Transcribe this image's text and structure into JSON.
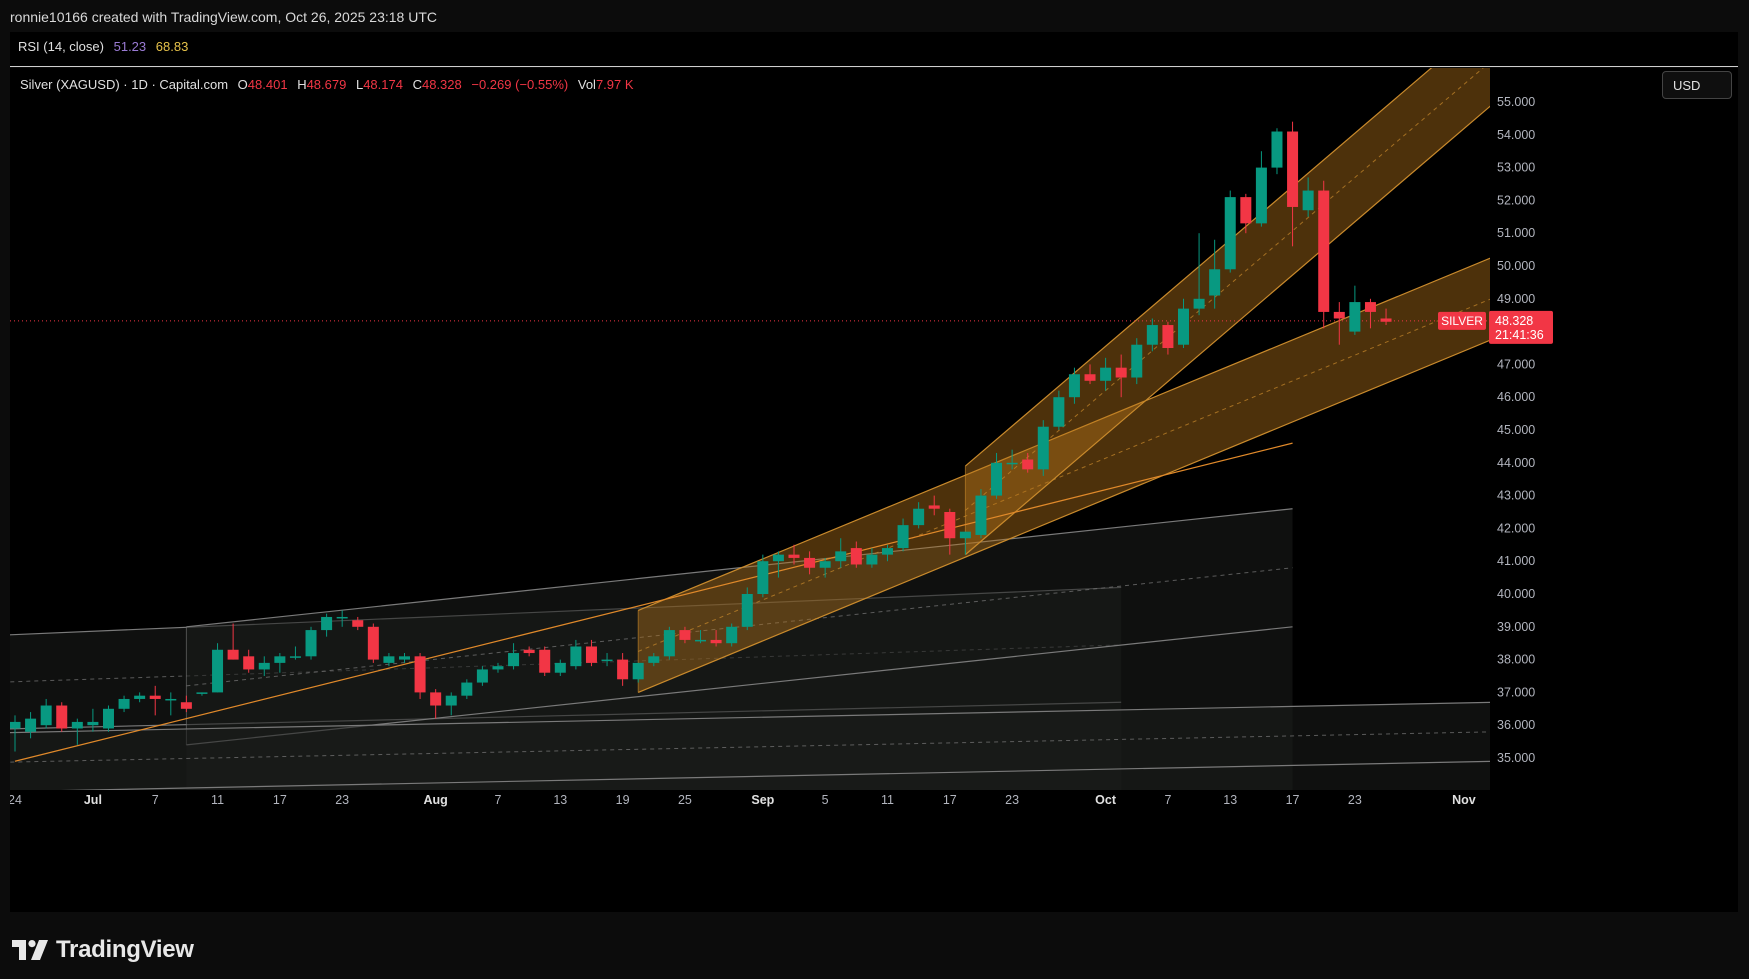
{
  "header": {
    "credit": "ronnie10166 created with TradingView.com, Oct 26, 2025 23:18 UTC"
  },
  "rsi": {
    "label": "RSI (14, close)",
    "value1": "51.23",
    "value2": "68.83"
  },
  "legend": {
    "symbol": "Silver (XAGUSD) · 1D · Capital.com",
    "o_label": "O",
    "o_value": "48.401",
    "h_label": "H",
    "h_value": "48.679",
    "l_label": "L",
    "l_value": "48.174",
    "c_label": "C",
    "c_value": "48.328",
    "change": "−0.269 (−0.55%)",
    "vol_label": "Vol",
    "vol_value": "7.97 K"
  },
  "currency_button": "USD",
  "brand": "TradingView",
  "colors": {
    "up": "#089981",
    "down": "#f23645",
    "channel_fill": "#b8741a",
    "channel_border": "#c98a2c",
    "grey_channel": "#7a7a7a",
    "price_tag": "#f23645"
  },
  "chart_data": {
    "type": "candlestick",
    "price_axis": {
      "ticks": [
        "55.000",
        "54.000",
        "53.000",
        "52.000",
        "51.000",
        "50.000",
        "49.000",
        "48.000",
        "47.000",
        "46.000",
        "45.000",
        "44.000",
        "43.000",
        "42.000",
        "41.000",
        "40.000",
        "39.000",
        "38.000",
        "37.000",
        "36.000",
        "35.000"
      ],
      "range": [
        34.0,
        56.6
      ]
    },
    "time_axis": {
      "ticks": [
        {
          "label": "24",
          "bar": 0
        },
        {
          "label": "Jul",
          "bar": 5
        },
        {
          "label": "7",
          "bar": 9
        },
        {
          "label": "11",
          "bar": 13
        },
        {
          "label": "17",
          "bar": 17
        },
        {
          "label": "23",
          "bar": 21
        },
        {
          "label": "Aug",
          "bar": 27
        },
        {
          "label": "7",
          "bar": 31
        },
        {
          "label": "13",
          "bar": 35
        },
        {
          "label": "19",
          "bar": 39
        },
        {
          "label": "25",
          "bar": 43
        },
        {
          "label": "Sep",
          "bar": 48
        },
        {
          "label": "5",
          "bar": 52
        },
        {
          "label": "11",
          "bar": 56
        },
        {
          "label": "17",
          "bar": 60
        },
        {
          "label": "23",
          "bar": 64
        },
        {
          "label": "Oct",
          "bar": 70
        },
        {
          "label": "7",
          "bar": 74
        },
        {
          "label": "13",
          "bar": 78
        },
        {
          "label": "17",
          "bar": 82
        },
        {
          "label": "23",
          "bar": 86
        },
        {
          "label": "Nov",
          "bar": 93
        }
      ],
      "bar_range": [
        0,
        94
      ]
    },
    "last_price": {
      "label": "SILVER",
      "price": "48.328",
      "countdown": "21:41:36",
      "value": 48.328
    },
    "candles": [
      {
        "i": 0,
        "o": 35.9,
        "h": 36.3,
        "l": 35.2,
        "c": 36.1
      },
      {
        "i": 1,
        "o": 35.8,
        "h": 36.4,
        "l": 35.6,
        "c": 36.2
      },
      {
        "i": 2,
        "o": 36.0,
        "h": 36.8,
        "l": 35.9,
        "c": 36.6
      },
      {
        "i": 3,
        "o": 36.6,
        "h": 36.7,
        "l": 35.8,
        "c": 35.9
      },
      {
        "i": 4,
        "o": 35.9,
        "h": 36.2,
        "l": 35.4,
        "c": 36.1
      },
      {
        "i": 5,
        "o": 36.0,
        "h": 36.5,
        "l": 35.8,
        "c": 36.1
      },
      {
        "i": 6,
        "o": 35.9,
        "h": 36.6,
        "l": 35.8,
        "c": 36.5
      },
      {
        "i": 7,
        "o": 36.5,
        "h": 36.9,
        "l": 36.4,
        "c": 36.8
      },
      {
        "i": 8,
        "o": 36.8,
        "h": 37.0,
        "l": 36.7,
        "c": 36.9
      },
      {
        "i": 9,
        "o": 36.9,
        "h": 37.2,
        "l": 36.3,
        "c": 36.8
      },
      {
        "i": 10,
        "o": 36.8,
        "h": 37.0,
        "l": 36.3,
        "c": 36.8
      },
      {
        "i": 11,
        "o": 36.7,
        "h": 36.9,
        "l": 36.4,
        "c": 36.5
      },
      {
        "i": 12,
        "o": 37.0,
        "h": 37.0,
        "l": 36.9,
        "c": 37.0
      },
      {
        "i": 13,
        "o": 37.0,
        "h": 38.5,
        "l": 37.0,
        "c": 38.3
      },
      {
        "i": 14,
        "o": 38.3,
        "h": 39.1,
        "l": 38.0,
        "c": 38.0
      },
      {
        "i": 15,
        "o": 38.1,
        "h": 38.3,
        "l": 37.6,
        "c": 37.7
      },
      {
        "i": 16,
        "o": 37.7,
        "h": 38.1,
        "l": 37.5,
        "c": 37.9
      },
      {
        "i": 17,
        "o": 37.9,
        "h": 38.2,
        "l": 37.6,
        "c": 38.1
      },
      {
        "i": 18,
        "o": 38.1,
        "h": 38.4,
        "l": 38.0,
        "c": 38.1
      },
      {
        "i": 19,
        "o": 38.1,
        "h": 39.0,
        "l": 38.0,
        "c": 38.9
      },
      {
        "i": 20,
        "o": 38.9,
        "h": 39.4,
        "l": 38.7,
        "c": 39.3
      },
      {
        "i": 21,
        "o": 39.3,
        "h": 39.5,
        "l": 39.0,
        "c": 39.3
      },
      {
        "i": 22,
        "o": 39.2,
        "h": 39.3,
        "l": 38.9,
        "c": 39.0
      },
      {
        "i": 23,
        "o": 39.0,
        "h": 39.1,
        "l": 37.9,
        "c": 38.0
      },
      {
        "i": 24,
        "o": 37.9,
        "h": 38.2,
        "l": 37.8,
        "c": 38.1
      },
      {
        "i": 25,
        "o": 38.0,
        "h": 38.2,
        "l": 37.9,
        "c": 38.1
      },
      {
        "i": 26,
        "o": 38.1,
        "h": 38.2,
        "l": 36.8,
        "c": 37.0
      },
      {
        "i": 27,
        "o": 37.0,
        "h": 37.1,
        "l": 36.2,
        "c": 36.6
      },
      {
        "i": 28,
        "o": 36.6,
        "h": 37.0,
        "l": 36.3,
        "c": 36.9
      },
      {
        "i": 29,
        "o": 36.9,
        "h": 37.4,
        "l": 36.8,
        "c": 37.3
      },
      {
        "i": 30,
        "o": 37.3,
        "h": 37.8,
        "l": 37.2,
        "c": 37.7
      },
      {
        "i": 31,
        "o": 37.7,
        "h": 37.9,
        "l": 37.6,
        "c": 37.8
      },
      {
        "i": 32,
        "o": 37.8,
        "h": 38.5,
        "l": 37.7,
        "c": 38.2
      },
      {
        "i": 33,
        "o": 38.3,
        "h": 38.4,
        "l": 38.1,
        "c": 38.2
      },
      {
        "i": 34,
        "o": 38.3,
        "h": 38.4,
        "l": 37.5,
        "c": 37.6
      },
      {
        "i": 35,
        "o": 37.6,
        "h": 38.0,
        "l": 37.5,
        "c": 37.9
      },
      {
        "i": 36,
        "o": 37.8,
        "h": 38.6,
        "l": 37.7,
        "c": 38.4
      },
      {
        "i": 37,
        "o": 38.4,
        "h": 38.6,
        "l": 37.8,
        "c": 37.9
      },
      {
        "i": 38,
        "o": 38.0,
        "h": 38.2,
        "l": 37.8,
        "c": 38.0
      },
      {
        "i": 39,
        "o": 38.0,
        "h": 38.2,
        "l": 37.2,
        "c": 37.4
      },
      {
        "i": 40,
        "o": 37.4,
        "h": 37.9,
        "l": 37.3,
        "c": 37.9
      },
      {
        "i": 41,
        "o": 37.9,
        "h": 38.2,
        "l": 37.8,
        "c": 38.1
      },
      {
        "i": 42,
        "o": 38.1,
        "h": 39.0,
        "l": 38.0,
        "c": 38.9
      },
      {
        "i": 43,
        "o": 38.9,
        "h": 39.0,
        "l": 38.5,
        "c": 38.6
      },
      {
        "i": 44,
        "o": 38.6,
        "h": 38.9,
        "l": 38.5,
        "c": 38.6
      },
      {
        "i": 45,
        "o": 38.6,
        "h": 38.9,
        "l": 38.4,
        "c": 38.5
      },
      {
        "i": 46,
        "o": 38.5,
        "h": 39.1,
        "l": 38.4,
        "c": 39.0
      },
      {
        "i": 47,
        "o": 39.0,
        "h": 40.2,
        "l": 38.9,
        "c": 40.0
      },
      {
        "i": 48,
        "o": 40.0,
        "h": 41.2,
        "l": 39.9,
        "c": 41.0
      },
      {
        "i": 49,
        "o": 41.0,
        "h": 41.3,
        "l": 40.5,
        "c": 41.2
      },
      {
        "i": 50,
        "o": 41.2,
        "h": 41.5,
        "l": 40.9,
        "c": 41.1
      },
      {
        "i": 51,
        "o": 41.1,
        "h": 41.3,
        "l": 40.6,
        "c": 40.8
      },
      {
        "i": 52,
        "o": 40.8,
        "h": 41.1,
        "l": 40.5,
        "c": 41.0
      },
      {
        "i": 53,
        "o": 41.0,
        "h": 41.7,
        "l": 40.8,
        "c": 41.3
      },
      {
        "i": 54,
        "o": 41.4,
        "h": 41.6,
        "l": 40.8,
        "c": 40.9
      },
      {
        "i": 55,
        "o": 40.9,
        "h": 41.4,
        "l": 40.8,
        "c": 41.2
      },
      {
        "i": 56,
        "o": 41.2,
        "h": 41.5,
        "l": 41.0,
        "c": 41.4
      },
      {
        "i": 57,
        "o": 41.4,
        "h": 42.3,
        "l": 41.3,
        "c": 42.1
      },
      {
        "i": 58,
        "o": 42.1,
        "h": 42.8,
        "l": 42.0,
        "c": 42.6
      },
      {
        "i": 59,
        "o": 42.7,
        "h": 43.0,
        "l": 42.4,
        "c": 42.6
      },
      {
        "i": 60,
        "o": 42.5,
        "h": 42.6,
        "l": 41.2,
        "c": 41.7
      },
      {
        "i": 61,
        "o": 41.7,
        "h": 41.9,
        "l": 41.2,
        "c": 41.9
      },
      {
        "i": 62,
        "o": 41.8,
        "h": 43.2,
        "l": 41.7,
        "c": 43.0
      },
      {
        "i": 63,
        "o": 43.0,
        "h": 44.3,
        "l": 42.9,
        "c": 44.0
      },
      {
        "i": 64,
        "o": 44.0,
        "h": 44.4,
        "l": 43.8,
        "c": 44.0
      },
      {
        "i": 65,
        "o": 44.1,
        "h": 44.3,
        "l": 43.7,
        "c": 43.8
      },
      {
        "i": 66,
        "o": 43.8,
        "h": 45.3,
        "l": 43.6,
        "c": 45.1
      },
      {
        "i": 67,
        "o": 45.1,
        "h": 46.2,
        "l": 45.0,
        "c": 46.0
      },
      {
        "i": 68,
        "o": 46.0,
        "h": 46.9,
        "l": 45.8,
        "c": 46.7
      },
      {
        "i": 69,
        "o": 46.7,
        "h": 47.0,
        "l": 46.4,
        "c": 46.5
      },
      {
        "i": 70,
        "o": 46.5,
        "h": 47.2,
        "l": 46.2,
        "c": 46.9
      },
      {
        "i": 71,
        "o": 46.9,
        "h": 47.3,
        "l": 46.0,
        "c": 46.6
      },
      {
        "i": 72,
        "o": 46.6,
        "h": 47.8,
        "l": 46.4,
        "c": 47.6
      },
      {
        "i": 73,
        "o": 47.6,
        "h": 48.4,
        "l": 47.4,
        "c": 48.2
      },
      {
        "i": 74,
        "o": 48.2,
        "h": 48.3,
        "l": 47.3,
        "c": 47.5
      },
      {
        "i": 75,
        "o": 47.6,
        "h": 49.0,
        "l": 47.5,
        "c": 48.7
      },
      {
        "i": 76,
        "o": 48.7,
        "h": 51.0,
        "l": 48.5,
        "c": 49.0
      },
      {
        "i": 77,
        "o": 49.1,
        "h": 50.8,
        "l": 48.7,
        "c": 49.9
      },
      {
        "i": 78,
        "o": 49.9,
        "h": 52.3,
        "l": 49.8,
        "c": 52.1
      },
      {
        "i": 79,
        "o": 52.1,
        "h": 52.2,
        "l": 51.0,
        "c": 51.3
      },
      {
        "i": 80,
        "o": 51.3,
        "h": 53.5,
        "l": 51.2,
        "c": 53.0
      },
      {
        "i": 81,
        "o": 53.0,
        "h": 54.2,
        "l": 52.8,
        "c": 54.1
      },
      {
        "i": 82,
        "o": 54.1,
        "h": 54.4,
        "l": 50.6,
        "c": 51.8
      },
      {
        "i": 83,
        "o": 51.7,
        "h": 52.7,
        "l": 51.5,
        "c": 52.3
      },
      {
        "i": 84,
        "o": 52.3,
        "h": 52.6,
        "l": 48.1,
        "c": 48.6
      },
      {
        "i": 85,
        "o": 48.6,
        "h": 48.9,
        "l": 47.6,
        "c": 48.4
      },
      {
        "i": 86,
        "o": 48.0,
        "h": 49.4,
        "l": 47.9,
        "c": 48.9
      },
      {
        "i": 87,
        "o": 48.9,
        "h": 49.0,
        "l": 48.1,
        "c": 48.6
      },
      {
        "i": 88,
        "o": 48.4,
        "h": 48.7,
        "l": 48.2,
        "c": 48.3
      }
    ],
    "drawings": [
      {
        "kind": "channel",
        "style": "grey",
        "bar1": -8,
        "bar2": 71,
        "top1": 38.6,
        "top2": 40.2,
        "bot1": 35.8,
        "bot2": 36.7,
        "shade_to": 71
      },
      {
        "kind": "channel",
        "style": "grey",
        "bar1": 11,
        "bar2": 82,
        "top1": 39.0,
        "top2": 42.6,
        "bot1": 35.4,
        "bot2": 39.0,
        "shade_to": 82
      },
      {
        "kind": "channel",
        "style": "grey",
        "bar1": -8,
        "bar2": 95,
        "top1": 35.7,
        "top2": 36.7,
        "bot1": 33.9,
        "bot2": 34.9,
        "shade_to": 95
      },
      {
        "kind": "channel",
        "style": "orange",
        "bar1": 40,
        "bar2": 95,
        "top1": 39.5,
        "top2": 50.3,
        "bot1": 37.0,
        "bot2": 47.8
      },
      {
        "kind": "channel",
        "style": "orange",
        "bar1": 61,
        "bar2": 95,
        "top1": 43.9,
        "top2": 57.7,
        "bot1": 41.2,
        "bot2": 55.0
      },
      {
        "kind": "line",
        "style": "orange",
        "bar1": 0,
        "bar2": 82,
        "p1": 34.9,
        "p2": 44.6
      }
    ]
  }
}
